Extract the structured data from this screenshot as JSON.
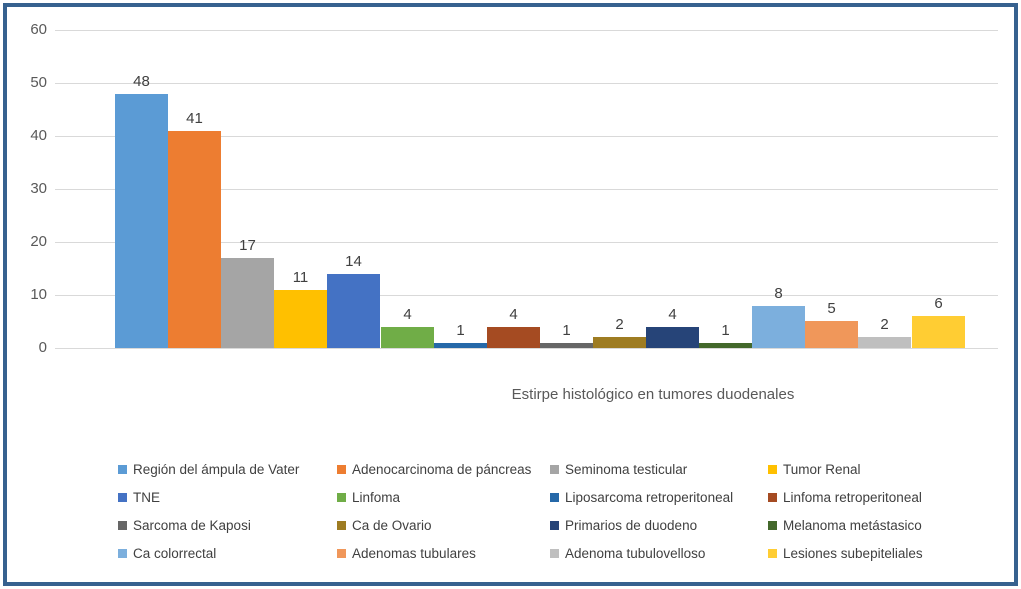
{
  "frame": {
    "border_color": "#36618F",
    "background": "#FFFFFF"
  },
  "chart_data": {
    "type": "bar",
    "title": "Estirpe histológico en tumores duodenales",
    "xlabel": "",
    "ylabel": "",
    "ylim": [
      0,
      60
    ],
    "yticks": [
      0,
      10,
      20,
      30,
      40,
      50,
      60
    ],
    "grid": "horizontal",
    "gridline_color": "#D9D9D9",
    "value_labels_shown": true,
    "legend_position": "bottom",
    "legend_columns": 4,
    "series": [
      {
        "name": "Región del ámpula de Vater",
        "value": 48,
        "color": "#5B9BD5"
      },
      {
        "name": "Adenocarcinoma de páncreas",
        "value": 41,
        "color": "#ED7D31"
      },
      {
        "name": "Seminoma testicular",
        "value": 17,
        "color": "#A5A5A5"
      },
      {
        "name": "Tumor Renal",
        "value": 11,
        "color": "#FFC000"
      },
      {
        "name": "TNE",
        "value": 14,
        "color": "#4472C4"
      },
      {
        "name": "Linfoma",
        "value": 4,
        "color": "#70AD47"
      },
      {
        "name": "Liposarcoma retroperitoneal",
        "value": 1,
        "color": "#2568A8"
      },
      {
        "name": "Linfoma retroperitoneal",
        "value": 4,
        "color": "#A54B22"
      },
      {
        "name": "Sarcoma de Kaposi",
        "value": 1,
        "color": "#666666"
      },
      {
        "name": "Ca de Ovario",
        "value": 2,
        "color": "#9E7C22"
      },
      {
        "name": "Primarios de duodeno",
        "value": 4,
        "color": "#264478"
      },
      {
        "name": "Melanoma metástasico",
        "value": 1,
        "color": "#43682B"
      },
      {
        "name": "Ca colorrectal",
        "value": 8,
        "color": "#7CAFDD"
      },
      {
        "name": "Adenomas tubulares",
        "value": 5,
        "color": "#F0975A"
      },
      {
        "name": "Adenoma tubulovelloso",
        "value": 2,
        "color": "#BFBFBF"
      },
      {
        "name": "Lesiones subepiteliales",
        "value": 6,
        "color": "#FFCD33"
      }
    ]
  }
}
